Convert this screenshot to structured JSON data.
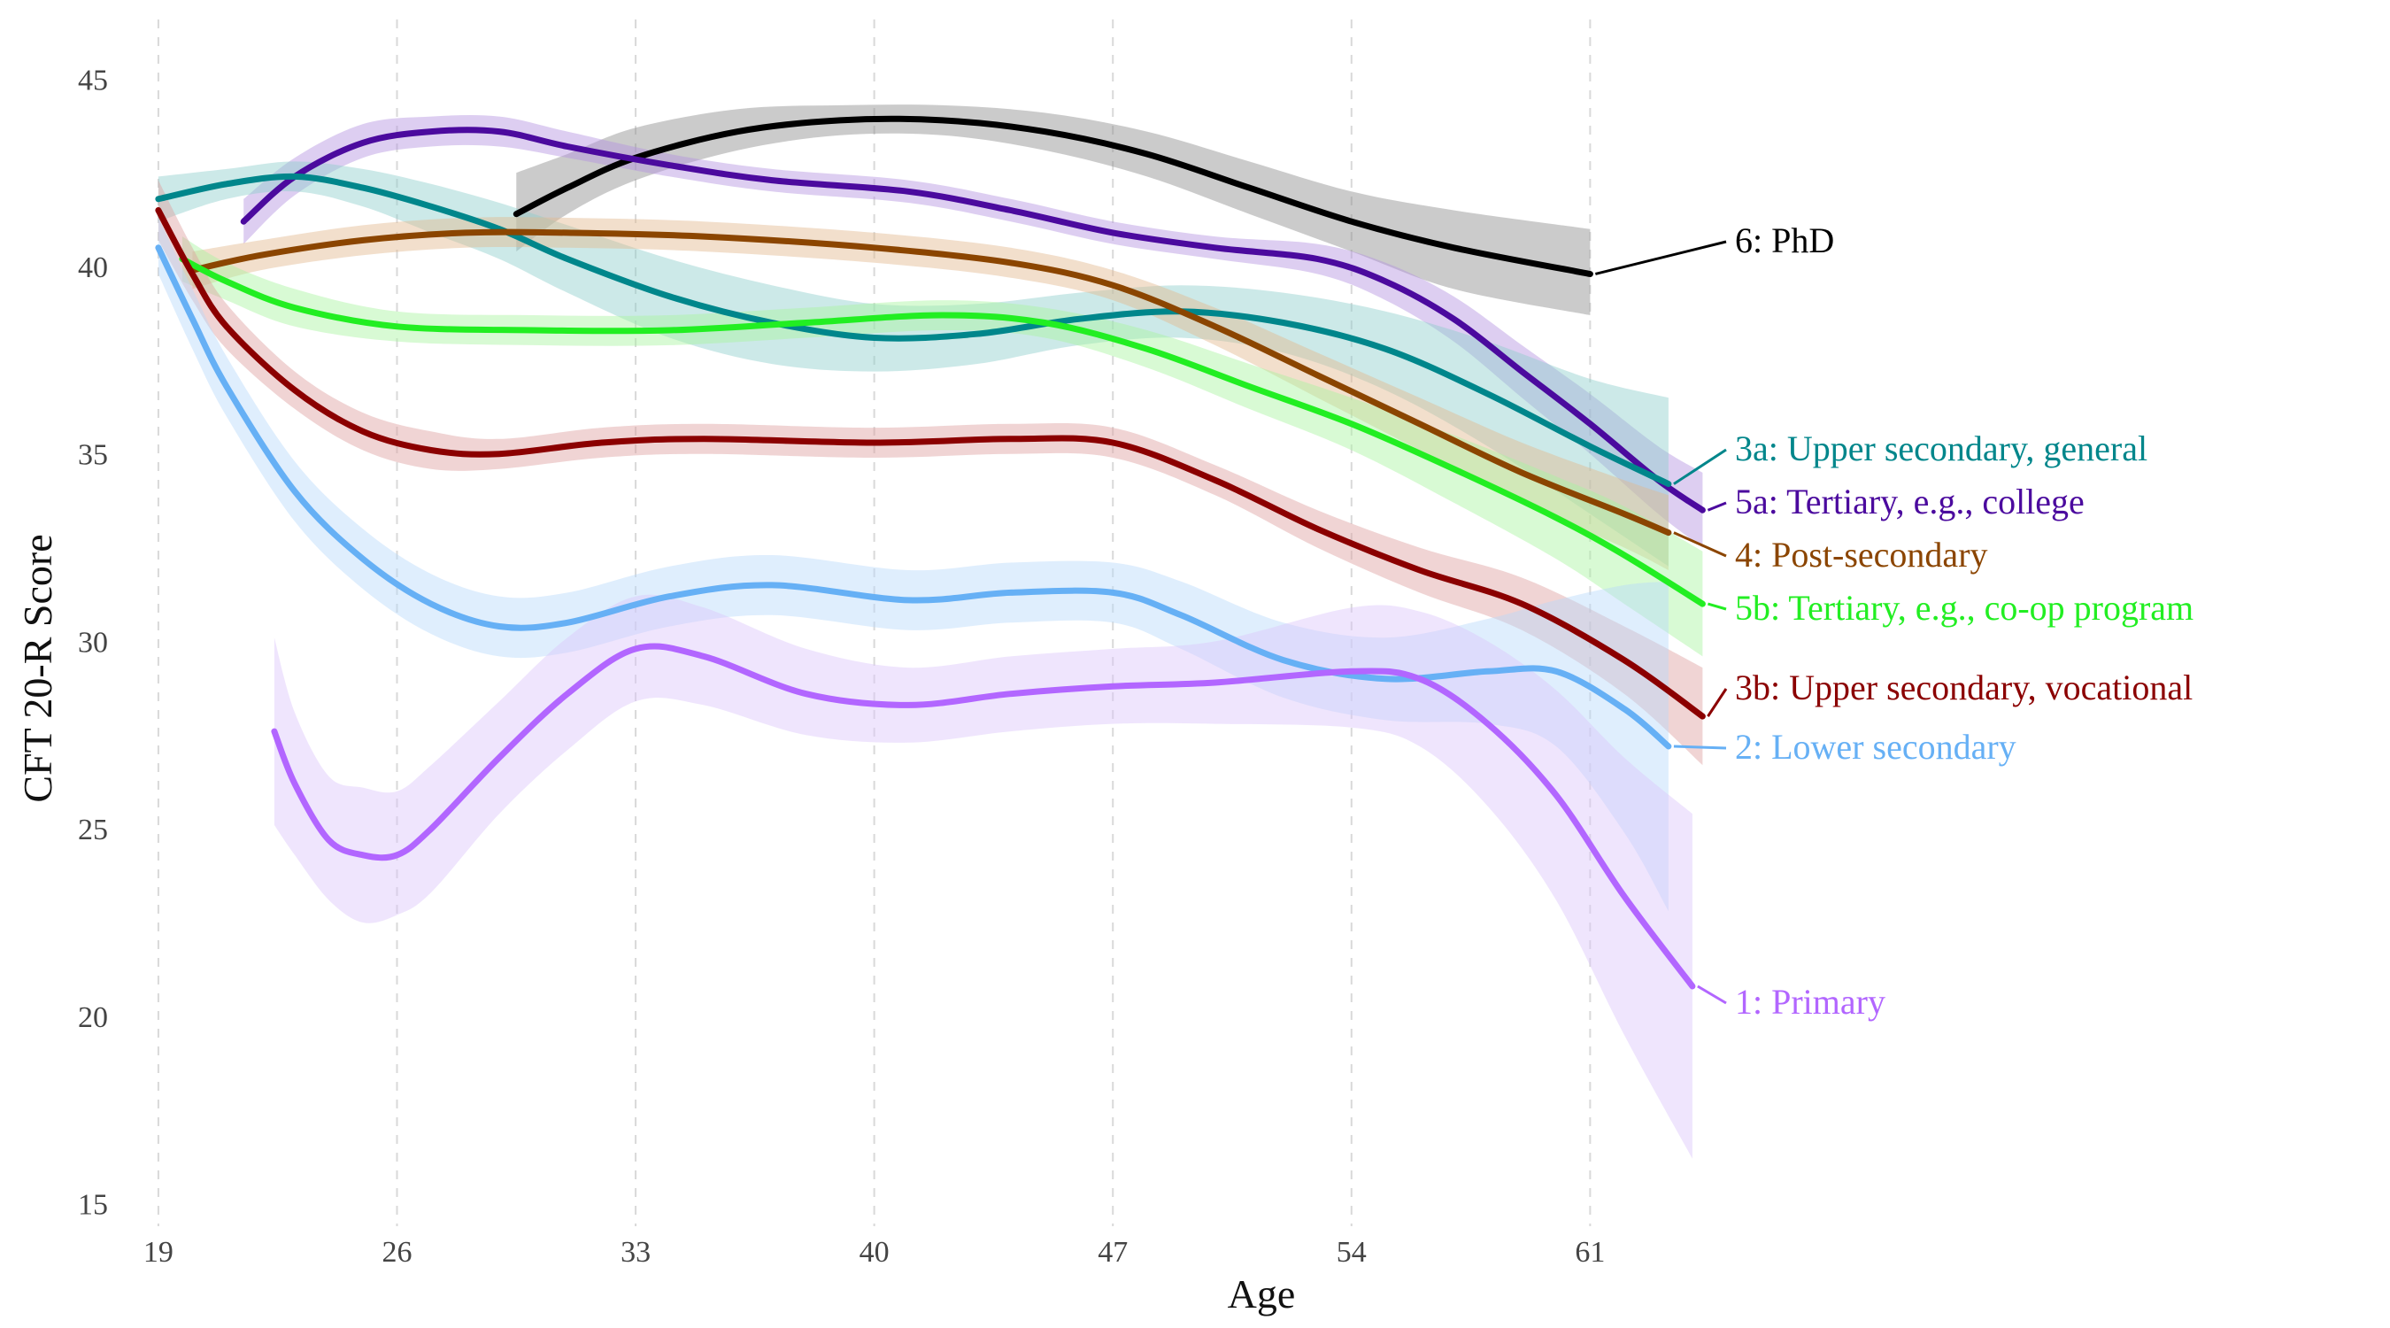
{
  "chart_data": {
    "type": "line",
    "title": "",
    "xlabel": "Age",
    "ylabel": "CFT 20-R Score",
    "xlim": [
      17.6,
      64.6
    ],
    "ylim": [
      14.4,
      46.4
    ],
    "x_ticks": [
      19,
      26,
      33,
      40,
      47,
      54,
      61
    ],
    "y_ticks": [
      15,
      20,
      25,
      30,
      35,
      40,
      45
    ],
    "grid": "vertical dashed",
    "legend": "direct labels at right end of lines",
    "series": [
      {
        "name": "6: PhD",
        "color": "#000000",
        "band_color": "#8c8c8c",
        "points": [
          {
            "x": 29.5,
            "y": 41.4,
            "lo": 40.4,
            "hi": 42.5
          },
          {
            "x": 31,
            "y": 42.1,
            "lo": 41.4,
            "hi": 43.0
          },
          {
            "x": 33,
            "y": 42.9,
            "lo": 42.3,
            "hi": 43.7
          },
          {
            "x": 36,
            "y": 43.6,
            "lo": 43.1,
            "hi": 44.2
          },
          {
            "x": 39,
            "y": 43.9,
            "lo": 43.5,
            "hi": 44.3
          },
          {
            "x": 42,
            "y": 43.9,
            "lo": 43.5,
            "hi": 44.3
          },
          {
            "x": 45,
            "y": 43.6,
            "lo": 43.1,
            "hi": 44.1
          },
          {
            "x": 48,
            "y": 43.0,
            "lo": 42.4,
            "hi": 43.6
          },
          {
            "x": 51,
            "y": 42.1,
            "lo": 41.4,
            "hi": 42.8
          },
          {
            "x": 54,
            "y": 41.2,
            "lo": 40.4,
            "hi": 42.0
          },
          {
            "x": 57,
            "y": 40.5,
            "lo": 39.4,
            "hi": 41.5
          },
          {
            "x": 61,
            "y": 39.8,
            "lo": 38.7,
            "hi": 41.0
          }
        ]
      },
      {
        "name": "5a: Tertiary, e.g., college",
        "color": "#4b0a9e",
        "band_color": "#b493e0",
        "points": [
          {
            "x": 21.5,
            "y": 41.2,
            "lo": 40.6,
            "hi": 41.8
          },
          {
            "x": 23,
            "y": 42.4,
            "lo": 41.9,
            "hi": 42.9
          },
          {
            "x": 25,
            "y": 43.3,
            "lo": 42.9,
            "hi": 43.8
          },
          {
            "x": 27,
            "y": 43.6,
            "lo": 43.2,
            "hi": 44.0
          },
          {
            "x": 29,
            "y": 43.6,
            "lo": 43.2,
            "hi": 44.0
          },
          {
            "x": 31,
            "y": 43.2,
            "lo": 42.9,
            "hi": 43.6
          },
          {
            "x": 34,
            "y": 42.7,
            "lo": 42.4,
            "hi": 43.0
          },
          {
            "x": 37,
            "y": 42.3,
            "lo": 42.0,
            "hi": 42.6
          },
          {
            "x": 41,
            "y": 42.0,
            "lo": 41.7,
            "hi": 42.3
          },
          {
            "x": 44,
            "y": 41.5,
            "lo": 41.2,
            "hi": 41.8
          },
          {
            "x": 47,
            "y": 40.9,
            "lo": 40.6,
            "hi": 41.2
          },
          {
            "x": 50,
            "y": 40.5,
            "lo": 40.2,
            "hi": 40.8
          },
          {
            "x": 53,
            "y": 40.2,
            "lo": 39.8,
            "hi": 40.6
          },
          {
            "x": 55,
            "y": 39.6,
            "lo": 39.1,
            "hi": 40.1
          },
          {
            "x": 57,
            "y": 38.6,
            "lo": 38.0,
            "hi": 39.2
          },
          {
            "x": 59,
            "y": 37.2,
            "lo": 36.5,
            "hi": 37.9
          },
          {
            "x": 61,
            "y": 35.8,
            "lo": 35.0,
            "hi": 36.6
          },
          {
            "x": 63,
            "y": 34.3,
            "lo": 33.4,
            "hi": 35.2
          },
          {
            "x": 64.3,
            "y": 33.5,
            "lo": 32.5,
            "hi": 34.5
          }
        ]
      },
      {
        "name": "3a: Upper secondary, general",
        "color": "#00868b",
        "band_color": "#8ecfcd",
        "points": [
          {
            "x": 19,
            "y": 41.8,
            "lo": 41.2,
            "hi": 42.4
          },
          {
            "x": 21,
            "y": 42.2,
            "lo": 41.8,
            "hi": 42.6
          },
          {
            "x": 23,
            "y": 42.4,
            "lo": 42.0,
            "hi": 42.8
          },
          {
            "x": 25,
            "y": 42.1,
            "lo": 41.6,
            "hi": 42.6
          },
          {
            "x": 27,
            "y": 41.6,
            "lo": 40.9,
            "hi": 42.2
          },
          {
            "x": 29,
            "y": 41.0,
            "lo": 40.2,
            "hi": 41.7
          },
          {
            "x": 31,
            "y": 40.2,
            "lo": 39.3,
            "hi": 41.1
          },
          {
            "x": 34,
            "y": 39.2,
            "lo": 38.1,
            "hi": 40.2
          },
          {
            "x": 37,
            "y": 38.5,
            "lo": 37.4,
            "hi": 39.5
          },
          {
            "x": 40,
            "y": 38.1,
            "lo": 37.2,
            "hi": 39.0
          },
          {
            "x": 43,
            "y": 38.2,
            "lo": 37.4,
            "hi": 39.0
          },
          {
            "x": 46,
            "y": 38.6,
            "lo": 37.9,
            "hi": 39.3
          },
          {
            "x": 49,
            "y": 38.8,
            "lo": 38.1,
            "hi": 39.5
          },
          {
            "x": 52,
            "y": 38.5,
            "lo": 37.7,
            "hi": 39.3
          },
          {
            "x": 55,
            "y": 37.8,
            "lo": 36.7,
            "hi": 38.8
          },
          {
            "x": 58,
            "y": 36.6,
            "lo": 35.2,
            "hi": 38.0
          },
          {
            "x": 61,
            "y": 35.2,
            "lo": 33.4,
            "hi": 37.0
          },
          {
            "x": 63.3,
            "y": 34.2,
            "lo": 32.0,
            "hi": 36.5
          }
        ]
      },
      {
        "name": "4: Post-secondary",
        "color": "#8b4500",
        "band_color": "#e3b98f",
        "points": [
          {
            "x": 20,
            "y": 39.9,
            "lo": 39.4,
            "hi": 40.4
          },
          {
            "x": 22,
            "y": 40.3,
            "lo": 39.9,
            "hi": 40.7
          },
          {
            "x": 25,
            "y": 40.7,
            "lo": 40.3,
            "hi": 41.1
          },
          {
            "x": 28,
            "y": 40.9,
            "lo": 40.5,
            "hi": 41.3
          },
          {
            "x": 31,
            "y": 40.9,
            "lo": 40.5,
            "hi": 41.3
          },
          {
            "x": 35,
            "y": 40.8,
            "lo": 40.4,
            "hi": 41.2
          },
          {
            "x": 40,
            "y": 40.5,
            "lo": 40.1,
            "hi": 40.9
          },
          {
            "x": 44,
            "y": 40.1,
            "lo": 39.7,
            "hi": 40.5
          },
          {
            "x": 47,
            "y": 39.5,
            "lo": 39.1,
            "hi": 39.9
          },
          {
            "x": 50,
            "y": 38.4,
            "lo": 37.9,
            "hi": 38.9
          },
          {
            "x": 53,
            "y": 37.1,
            "lo": 36.5,
            "hi": 37.7
          },
          {
            "x": 56,
            "y": 35.8,
            "lo": 35.1,
            "hi": 36.5
          },
          {
            "x": 59,
            "y": 34.5,
            "lo": 33.7,
            "hi": 35.3
          },
          {
            "x": 62,
            "y": 33.4,
            "lo": 32.5,
            "hi": 34.3
          },
          {
            "x": 63.3,
            "y": 32.9,
            "lo": 31.9,
            "hi": 33.9
          }
        ]
      },
      {
        "name": "5b: Tertiary, e.g., co-op program",
        "color": "#22ee22",
        "band_color": "#a8f5a0",
        "points": [
          {
            "x": 19.7,
            "y": 40.2,
            "lo": 39.6,
            "hi": 40.8
          },
          {
            "x": 21,
            "y": 39.6,
            "lo": 39.1,
            "hi": 40.1
          },
          {
            "x": 23,
            "y": 38.9,
            "lo": 38.4,
            "hi": 39.4
          },
          {
            "x": 26,
            "y": 38.4,
            "lo": 38.0,
            "hi": 38.8
          },
          {
            "x": 30,
            "y": 38.3,
            "lo": 37.9,
            "hi": 38.7
          },
          {
            "x": 34,
            "y": 38.3,
            "lo": 37.9,
            "hi": 38.7
          },
          {
            "x": 38,
            "y": 38.5,
            "lo": 38.1,
            "hi": 38.9
          },
          {
            "x": 42,
            "y": 38.7,
            "lo": 38.3,
            "hi": 39.1
          },
          {
            "x": 45,
            "y": 38.5,
            "lo": 38.1,
            "hi": 38.9
          },
          {
            "x": 48,
            "y": 37.8,
            "lo": 37.3,
            "hi": 38.3
          },
          {
            "x": 51,
            "y": 36.8,
            "lo": 36.2,
            "hi": 37.4
          },
          {
            "x": 54,
            "y": 35.8,
            "lo": 35.1,
            "hi": 36.5
          },
          {
            "x": 57,
            "y": 34.6,
            "lo": 33.7,
            "hi": 35.5
          },
          {
            "x": 60,
            "y": 33.3,
            "lo": 32.2,
            "hi": 34.4
          },
          {
            "x": 62,
            "y": 32.3,
            "lo": 31.0,
            "hi": 33.6
          },
          {
            "x": 64.3,
            "y": 31.0,
            "lo": 29.6,
            "hi": 32.4
          }
        ]
      },
      {
        "name": "3b: Upper secondary, vocational",
        "color": "#8b0000",
        "band_color": "#dda0a0",
        "points": [
          {
            "x": 19,
            "y": 41.5,
            "lo": 40.7,
            "hi": 42.3
          },
          {
            "x": 20,
            "y": 39.8,
            "lo": 39.1,
            "hi": 40.5
          },
          {
            "x": 21,
            "y": 38.4,
            "lo": 37.8,
            "hi": 39.0
          },
          {
            "x": 23,
            "y": 36.7,
            "lo": 36.2,
            "hi": 37.2
          },
          {
            "x": 25,
            "y": 35.6,
            "lo": 35.1,
            "hi": 36.1
          },
          {
            "x": 27,
            "y": 35.1,
            "lo": 34.6,
            "hi": 35.6
          },
          {
            "x": 29,
            "y": 35.0,
            "lo": 34.6,
            "hi": 35.4
          },
          {
            "x": 32,
            "y": 35.3,
            "lo": 34.9,
            "hi": 35.7
          },
          {
            "x": 35,
            "y": 35.4,
            "lo": 35.0,
            "hi": 35.8
          },
          {
            "x": 40,
            "y": 35.3,
            "lo": 34.9,
            "hi": 35.7
          },
          {
            "x": 44,
            "y": 35.4,
            "lo": 35.0,
            "hi": 35.8
          },
          {
            "x": 47,
            "y": 35.3,
            "lo": 34.9,
            "hi": 35.7
          },
          {
            "x": 50,
            "y": 34.3,
            "lo": 33.9,
            "hi": 34.7
          },
          {
            "x": 53,
            "y": 33.0,
            "lo": 32.5,
            "hi": 33.5
          },
          {
            "x": 56,
            "y": 31.9,
            "lo": 31.3,
            "hi": 32.5
          },
          {
            "x": 59,
            "y": 31.0,
            "lo": 30.3,
            "hi": 31.7
          },
          {
            "x": 62,
            "y": 29.5,
            "lo": 28.6,
            "hi": 30.4
          },
          {
            "x": 64.3,
            "y": 28.0,
            "lo": 26.7,
            "hi": 29.3
          }
        ]
      },
      {
        "name": "2: Lower secondary",
        "color": "#66b0f5",
        "band_color": "#b9d9fb",
        "points": [
          {
            "x": 19,
            "y": 40.5,
            "lo": 39.8,
            "hi": 41.3
          },
          {
            "x": 20,
            "y": 38.6,
            "lo": 37.8,
            "hi": 39.4
          },
          {
            "x": 21,
            "y": 36.8,
            "lo": 36.0,
            "hi": 37.6
          },
          {
            "x": 23,
            "y": 34.0,
            "lo": 33.2,
            "hi": 34.8
          },
          {
            "x": 25,
            "y": 32.2,
            "lo": 31.4,
            "hi": 33.0
          },
          {
            "x": 27,
            "y": 31.0,
            "lo": 30.2,
            "hi": 31.8
          },
          {
            "x": 29,
            "y": 30.4,
            "lo": 29.6,
            "hi": 31.2
          },
          {
            "x": 31,
            "y": 30.5,
            "lo": 29.7,
            "hi": 31.3
          },
          {
            "x": 34,
            "y": 31.2,
            "lo": 30.4,
            "hi": 32.0
          },
          {
            "x": 37,
            "y": 31.5,
            "lo": 30.7,
            "hi": 32.3
          },
          {
            "x": 41,
            "y": 31.1,
            "lo": 30.3,
            "hi": 31.9
          },
          {
            "x": 44,
            "y": 31.3,
            "lo": 30.5,
            "hi": 32.1
          },
          {
            "x": 47,
            "y": 31.3,
            "lo": 30.5,
            "hi": 32.1
          },
          {
            "x": 49,
            "y": 30.7,
            "lo": 29.8,
            "hi": 31.6
          },
          {
            "x": 52,
            "y": 29.5,
            "lo": 28.5,
            "hi": 30.5
          },
          {
            "x": 55,
            "y": 29.0,
            "lo": 27.9,
            "hi": 30.1
          },
          {
            "x": 58,
            "y": 29.2,
            "lo": 27.8,
            "hi": 30.6
          },
          {
            "x": 60,
            "y": 29.2,
            "lo": 27.2,
            "hi": 31.1
          },
          {
            "x": 62,
            "y": 28.2,
            "lo": 24.9,
            "hi": 31.5
          },
          {
            "x": 63.3,
            "y": 27.2,
            "lo": 22.8,
            "hi": 31.6
          }
        ]
      },
      {
        "name": "1: Primary",
        "color": "#b266ff",
        "band_color": "#dcc6fa",
        "points": [
          {
            "x": 22.4,
            "y": 27.6,
            "lo": 25.1,
            "hi": 30.1
          },
          {
            "x": 23,
            "y": 26.2,
            "lo": 24.3,
            "hi": 28.1
          },
          {
            "x": 24,
            "y": 24.7,
            "lo": 23.1,
            "hi": 26.4
          },
          {
            "x": 25,
            "y": 24.3,
            "lo": 22.5,
            "hi": 26.1
          },
          {
            "x": 26,
            "y": 24.3,
            "lo": 22.7,
            "hi": 26.0
          },
          {
            "x": 27,
            "y": 25.0,
            "lo": 23.3,
            "hi": 26.7
          },
          {
            "x": 29,
            "y": 26.9,
            "lo": 25.4,
            "hi": 28.4
          },
          {
            "x": 31,
            "y": 28.6,
            "lo": 27.1,
            "hi": 30.1
          },
          {
            "x": 33,
            "y": 29.8,
            "lo": 28.4,
            "hi": 31.2
          },
          {
            "x": 35,
            "y": 29.6,
            "lo": 28.3,
            "hi": 30.9
          },
          {
            "x": 38,
            "y": 28.6,
            "lo": 27.5,
            "hi": 29.8
          },
          {
            "x": 41,
            "y": 28.3,
            "lo": 27.3,
            "hi": 29.3
          },
          {
            "x": 44,
            "y": 28.6,
            "lo": 27.6,
            "hi": 29.6
          },
          {
            "x": 47,
            "y": 28.8,
            "lo": 27.8,
            "hi": 29.8
          },
          {
            "x": 50,
            "y": 28.9,
            "lo": 27.8,
            "hi": 30.0
          },
          {
            "x": 54,
            "y": 29.2,
            "lo": 27.7,
            "hi": 30.9
          },
          {
            "x": 56,
            "y": 29.0,
            "lo": 27.2,
            "hi": 30.8
          },
          {
            "x": 58,
            "y": 27.8,
            "lo": 25.6,
            "hi": 30.0
          },
          {
            "x": 60,
            "y": 25.9,
            "lo": 23.1,
            "hi": 28.7
          },
          {
            "x": 62,
            "y": 23.2,
            "lo": 19.5,
            "hi": 26.9
          },
          {
            "x": 64,
            "y": 20.8,
            "lo": 16.2,
            "hi": 25.4
          }
        ]
      }
    ]
  }
}
